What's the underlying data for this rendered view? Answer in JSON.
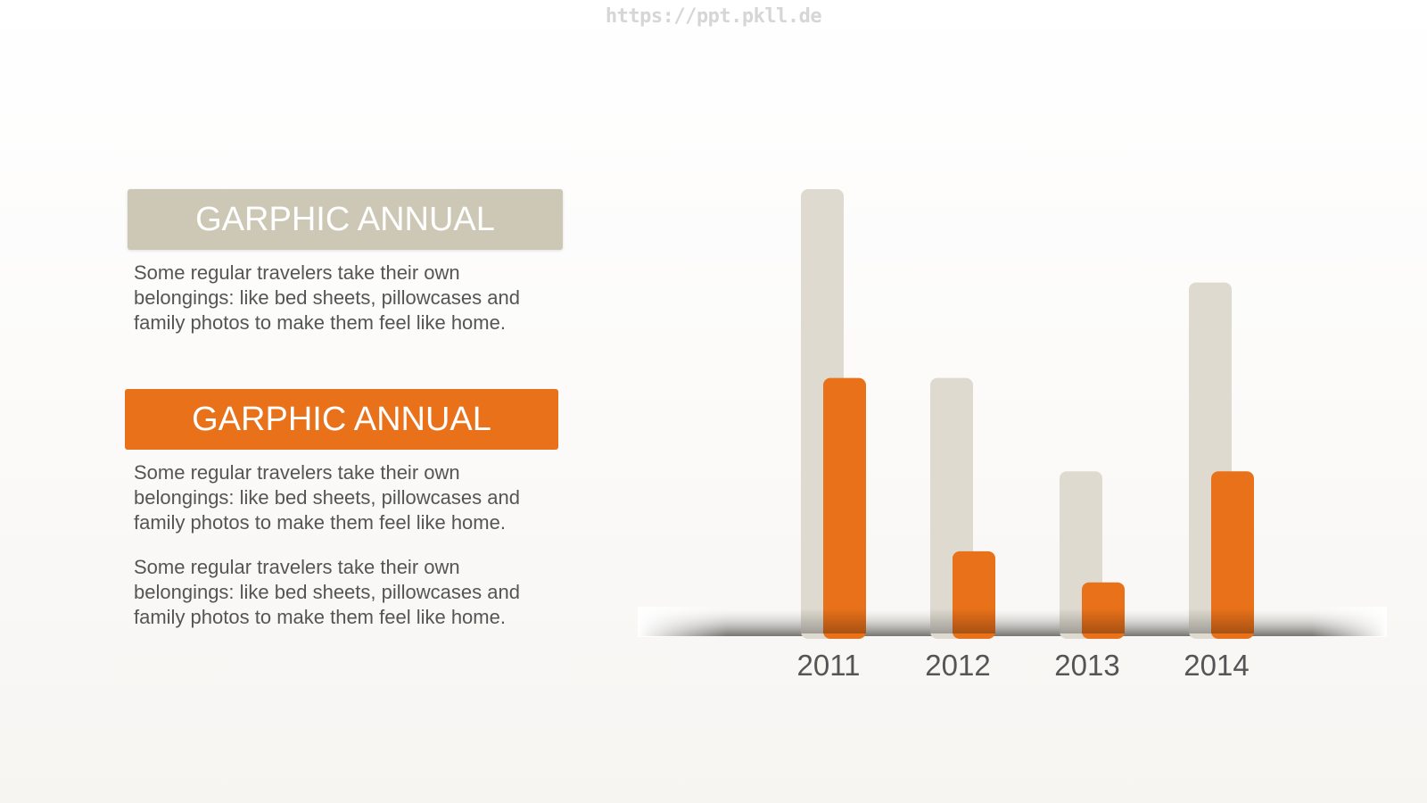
{
  "watermark": "https://ppt.pkll.de",
  "blocks": [
    {
      "title": "GARPHIC ANNUAL",
      "text": "Some regular travelers take their own belongings: like bed sheets, pillowcases and family photos to make them feel like home."
    },
    {
      "title": "GARPHIC ANNUAL",
      "text": "Some regular travelers take their own belongings: like bed sheets, pillowcases and family photos to make them feel like home."
    }
  ],
  "extra_text": "Some regular travelers take their own belongings: like bed sheets, pillowcases and family photos to make them feel like home.",
  "colors": {
    "accent": "#e8711a",
    "secondary": "#cdc8b6",
    "text": "#555555"
  },
  "chart_data": {
    "type": "bar",
    "categories": [
      "2011",
      "2012",
      "2013",
      "2014"
    ],
    "series": [
      {
        "values": [
          100,
          57.5,
          36.5,
          79
        ],
        "color": "#dedad0"
      },
      {
        "values": [
          57.5,
          18.5,
          11.5,
          36.5
        ],
        "color": "#e8711a"
      }
    ],
    "ylim": [
      0,
      100
    ],
    "grid": false,
    "legend": "none",
    "title": "",
    "xlabel": "",
    "ylabel": ""
  }
}
